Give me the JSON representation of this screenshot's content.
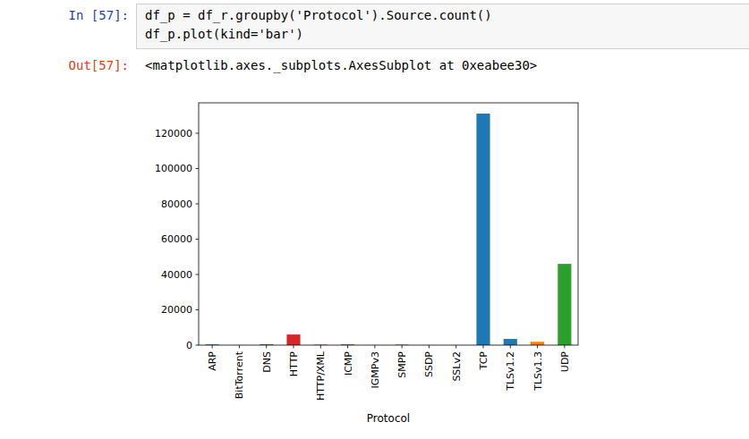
{
  "notebook": {
    "input_prompt": "In [57]:",
    "code": [
      "df_p = df_r.groupby('Protocol').Source.count()",
      "df_p.plot(kind='bar')"
    ],
    "output_prompt": "Out[57]:",
    "output": "<matplotlib.axes._subplots.AxesSubplot at 0xeabee30>"
  },
  "chart_data": {
    "type": "bar",
    "x_label": "Protocol",
    "categories": [
      "ARP",
      "BitTorrent",
      "DNS",
      "HTTP",
      "HTTP/XML",
      "ICMP",
      "IGMPv3",
      "SMPP",
      "SSDP",
      "SSLv2",
      "TCP",
      "TLSv1.2",
      "TLSv1.3",
      "UDP"
    ],
    "values": [
      400,
      50,
      500,
      6000,
      300,
      400,
      50,
      300,
      30,
      20,
      131100,
      3500,
      1900,
      46000
    ],
    "colors": [
      "#1f77b4",
      "#ff7f0e",
      "#2ca02c",
      "#d62728",
      "#9467bd",
      "#8c564b",
      "#e377c2",
      "#7f7f7f",
      "#bcbd22",
      "#17becf",
      "#1f77b4",
      "#1f77b4",
      "#ff7f0e",
      "#2ca02c"
    ],
    "ylim": [
      0,
      137200
    ],
    "yticks": [
      0,
      20000,
      40000,
      60000,
      80000,
      100000,
      120000
    ],
    "grid": false
  }
}
